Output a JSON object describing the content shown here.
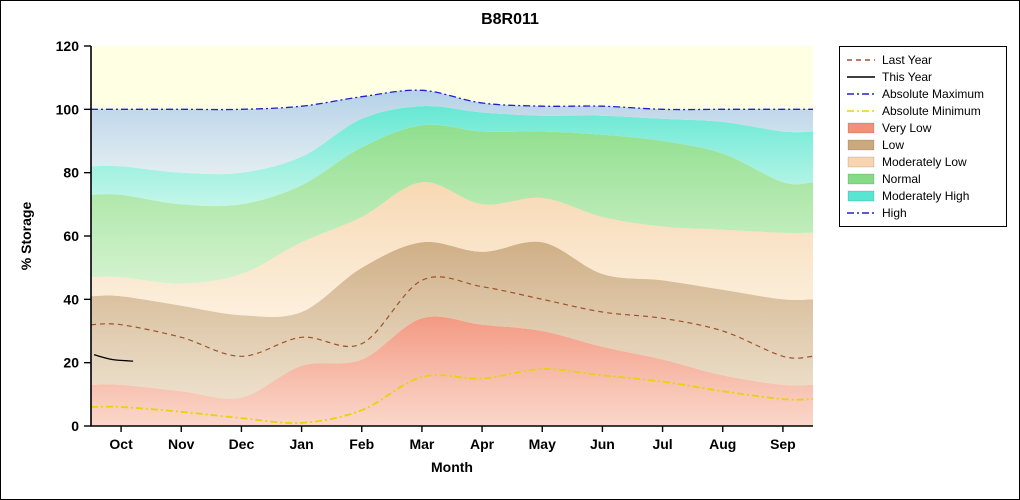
{
  "chart_data": {
    "type": "area",
    "title": "B8R011",
    "xlabel": "Month",
    "ylabel": "% Storage",
    "ylim": [
      0,
      120
    ],
    "yticks": [
      0,
      20,
      40,
      60,
      80,
      100,
      120
    ],
    "plot_bg": "#FFFFE4",
    "categories": [
      "Oct",
      "Nov",
      "Dec",
      "Jan",
      "Feb",
      "Mar",
      "Apr",
      "May",
      "Jun",
      "Jul",
      "Aug",
      "Sep"
    ],
    "bands": [
      {
        "name": "Very Low",
        "color": "#F2907A",
        "top": [
          13,
          11,
          9,
          19,
          21,
          34,
          32,
          30,
          25,
          21,
          16,
          13
        ]
      },
      {
        "name": "Low",
        "color": "#CBA87E",
        "top": [
          41,
          38,
          35,
          36,
          50,
          58,
          55,
          58,
          48,
          46,
          43,
          40
        ]
      },
      {
        "name": "Moderately Low",
        "color": "#F7D5B0",
        "top": [
          47,
          45,
          48,
          58,
          66,
          77,
          70,
          72,
          66,
          63,
          62,
          61
        ]
      },
      {
        "name": "Normal",
        "color": "#86DC86",
        "top": [
          73,
          70,
          70,
          76,
          88,
          95,
          93,
          93,
          92,
          90,
          86,
          77
        ]
      },
      {
        "name": "Moderately High",
        "color": "#58E6D2",
        "top": [
          82,
          80,
          80,
          85,
          97,
          101,
          99,
          98,
          98,
          97,
          96,
          93
        ]
      },
      {
        "name": "High",
        "color": "#AECDE8",
        "top": [
          100,
          100,
          100,
          101,
          104,
          106,
          102,
          101,
          101,
          100,
          100,
          100
        ]
      }
    ],
    "lines": [
      {
        "name": "Absolute Maximum",
        "color": "#2020CC",
        "style": "dashdot",
        "width": 1.3,
        "values": [
          100,
          100,
          100,
          101,
          104,
          106,
          102,
          101,
          101,
          100,
          100,
          100
        ]
      },
      {
        "name": "Absolute Minimum",
        "color": "#E8D400",
        "style": "dashdot",
        "width": 1.8,
        "values": [
          6,
          4.5,
          2.5,
          1,
          5,
          15.5,
          15,
          18,
          16,
          14,
          11,
          8.5
        ]
      },
      {
        "name": "Last Year",
        "color": "#A0522D",
        "style": "dashed",
        "width": 1.2,
        "values": [
          32,
          28,
          22,
          28,
          26,
          46,
          44,
          40,
          36,
          34,
          30,
          22
        ]
      },
      {
        "name": "This Year",
        "color": "#000000",
        "style": "solid",
        "width": 1.3,
        "x": [
          -0.45,
          -0.15,
          0.2
        ],
        "values": [
          22.5,
          21,
          20.5
        ]
      }
    ],
    "legend": [
      {
        "label": "Last Year",
        "type": "line",
        "color": "#A0522D",
        "style": "dashed"
      },
      {
        "label": "This Year",
        "type": "line",
        "color": "#000000",
        "style": "solid"
      },
      {
        "label": "Absolute Maximum",
        "type": "line",
        "color": "#2020CC",
        "style": "dashdot"
      },
      {
        "label": "Absolute Minimum",
        "type": "line",
        "color": "#E8D400",
        "style": "dashdot"
      },
      {
        "label": "Very Low",
        "type": "patch",
        "color": "#F2907A"
      },
      {
        "label": "Low",
        "type": "patch",
        "color": "#CBA87E"
      },
      {
        "label": "Moderately Low",
        "type": "patch",
        "color": "#F7D5B0"
      },
      {
        "label": "Normal",
        "type": "patch",
        "color": "#86DC86"
      },
      {
        "label": "Moderately High",
        "type": "patch",
        "color": "#58E6D2"
      },
      {
        "label": "High",
        "type": "line",
        "color": "#2020CC",
        "style": "dashdot"
      }
    ]
  }
}
